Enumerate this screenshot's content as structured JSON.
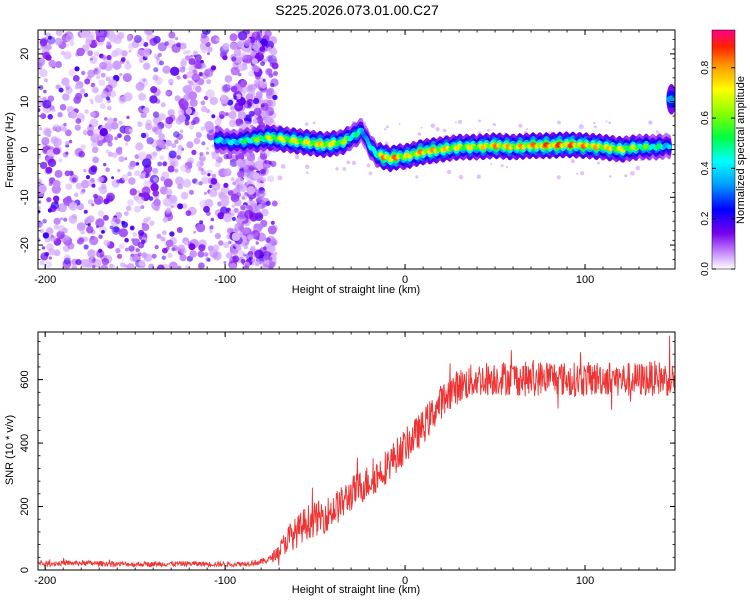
{
  "title": "S225.2026.073.01.00.C27",
  "chart_data": [
    {
      "type": "heatmap",
      "xlabel": "Height of straight line (km)",
      "ylabel": "Frequency (Hz)",
      "xlim": [
        -204,
        150
      ],
      "ylim": [
        -25,
        25
      ],
      "xticks": [
        -200,
        -100,
        0,
        100
      ],
      "xtick_labels": [
        "-200",
        "-100",
        "0",
        "100"
      ],
      "yticks": [
        -20,
        -10,
        0,
        10,
        20
      ],
      "ytick_labels": [
        "-20",
        "-10",
        "0",
        "10",
        "20"
      ],
      "colorbar": {
        "label": "Normalized spectral amplitude",
        "range": [
          0,
          0.95
        ],
        "ticks": [
          0,
          0.2,
          0.4,
          0.6,
          0.8
        ],
        "tick_labels": [
          "0.0",
          "0.2",
          "0.4",
          "0.6",
          "0.8"
        ]
      },
      "noise_region_x": [
        -204,
        -78
      ],
      "ridge": {
        "x": [
          -105,
          -95,
          -85,
          -75,
          -65,
          -55,
          -45,
          -35,
          -28,
          -24,
          -20,
          -16,
          -12,
          -8,
          -4,
          0,
          5,
          10,
          20,
          30,
          40,
          50,
          60,
          70,
          80,
          90,
          100,
          110,
          120,
          130,
          140,
          147
        ],
        "freq": [
          2,
          1.5,
          2,
          2.5,
          2,
          1.5,
          1,
          1.5,
          3,
          4,
          1,
          -1,
          -1.5,
          -2,
          -1.5,
          -1.5,
          -1,
          -0.5,
          0,
          0.5,
          0.5,
          0.8,
          0.5,
          0.8,
          0.8,
          1,
          0.8,
          0.5,
          0,
          0.5,
          0.5,
          0.8
        ],
        "amplitude": [
          0.45,
          0.45,
          0.6,
          0.7,
          0.75,
          0.75,
          0.8,
          0.7,
          0.55,
          0.45,
          0.4,
          0.6,
          0.85,
          0.9,
          0.85,
          0.75,
          0.8,
          0.85,
          0.8,
          0.75,
          0.75,
          0.85,
          0.8,
          0.85,
          0.9,
          0.9,
          0.85,
          0.8,
          0.75,
          0.65,
          0.55,
          0.45
        ]
      },
      "edge_feature": {
        "x": 148,
        "freq": 10.5,
        "amplitude": 0.55
      }
    },
    {
      "type": "line",
      "xlabel": "Height of straight line (km)",
      "ylabel": "SNR (10 * v/v)",
      "xlim": [
        -204,
        150
      ],
      "ylim": [
        0,
        750
      ],
      "xticks": [
        -200,
        -100,
        0,
        100
      ],
      "xtick_labels": [
        "-200",
        "-100",
        "0",
        "100"
      ],
      "yticks": [
        0,
        200,
        400,
        600
      ],
      "ytick_labels": [
        "0",
        "200",
        "400",
        "600"
      ],
      "color": "#ee3333",
      "series": [
        {
          "name": "SNR",
          "x": [
            -204,
            -180,
            -150,
            -120,
            -100,
            -90,
            -80,
            -75,
            -70,
            -65,
            -60,
            -55,
            -50,
            -45,
            -40,
            -35,
            -30,
            -25,
            -20,
            -15,
            -10,
            -5,
            0,
            5,
            10,
            15,
            20,
            25,
            30,
            40,
            50,
            60,
            70,
            80,
            90,
            100,
            110,
            120,
            130,
            140,
            150
          ],
          "values": [
            20,
            22,
            18,
            20,
            18,
            20,
            25,
            35,
            60,
            100,
            120,
            150,
            160,
            170,
            190,
            210,
            240,
            260,
            280,
            300,
            330,
            360,
            390,
            420,
            450,
            490,
            530,
            560,
            580,
            600,
            605,
            605,
            600,
            610,
            600,
            600,
            605,
            600,
            600,
            605,
            600
          ],
          "noise": [
            8,
            8,
            8,
            8,
            8,
            8,
            10,
            12,
            25,
            45,
            50,
            55,
            55,
            55,
            55,
            55,
            55,
            55,
            55,
            55,
            55,
            55,
            55,
            55,
            55,
            55,
            55,
            55,
            55,
            55,
            55,
            55,
            55,
            55,
            55,
            55,
            55,
            55,
            55,
            55,
            55
          ]
        }
      ]
    }
  ]
}
